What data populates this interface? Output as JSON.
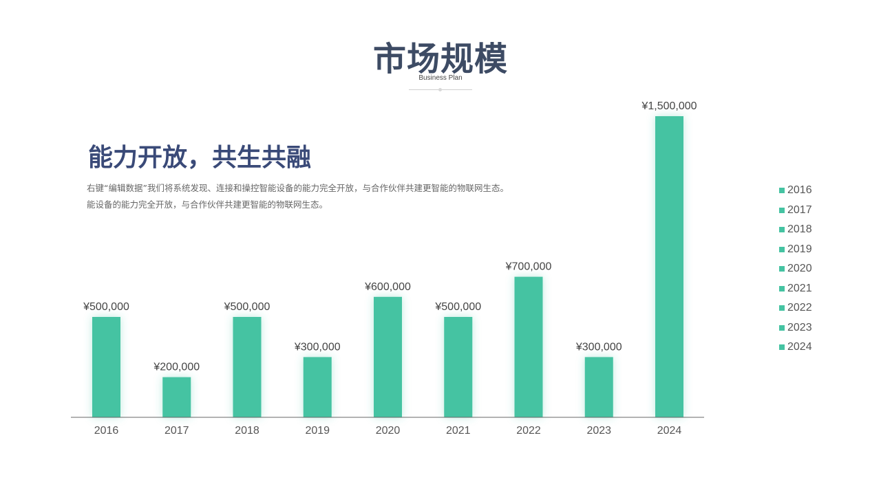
{
  "header": {
    "title": "市场规模",
    "subtitle": "Business Plan"
  },
  "content": {
    "headline": "能力开放，共生共融",
    "paragraphs": [
      "右键“编辑数据”我们将系统发现、连接和操控智能设备的能力完全开放，与合作伙伴共建更智能的物联网生态。",
      "能设备的能力完全开放，与合作伙伴共建更智能的物联网生态。"
    ]
  },
  "colors": {
    "bar": "#45c3a2",
    "title": "#3d4b64",
    "headline": "#3a4a78",
    "axis": "#666666"
  },
  "chart_data": {
    "type": "bar",
    "categories": [
      "2016",
      "2017",
      "2018",
      "2019",
      "2020",
      "2021",
      "2022",
      "2023",
      "2024"
    ],
    "values": [
      500000,
      200000,
      500000,
      300000,
      600000,
      500000,
      700000,
      300000,
      1500000
    ],
    "value_labels": [
      "¥500,000",
      "¥200,000",
      "¥500,000",
      "¥300,000",
      "¥600,000",
      "¥500,000",
      "¥700,000",
      "¥300,000",
      "¥1,500,000"
    ],
    "ylim": [
      0,
      1500000
    ],
    "grid": false,
    "legend": {
      "position": "right",
      "entries": [
        "2016",
        "2017",
        "2018",
        "2019",
        "2020",
        "2021",
        "2022",
        "2023",
        "2024"
      ]
    }
  }
}
